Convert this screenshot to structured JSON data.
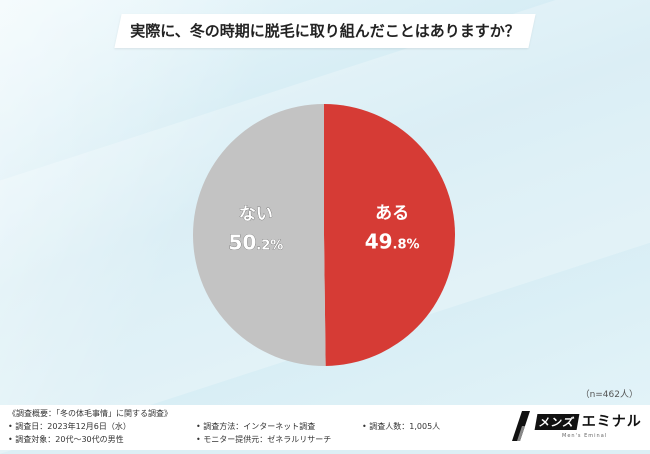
{
  "title": "実際に、冬の時期に脱毛に取り組んだことはありますか？",
  "sample_size": "（n=462人）",
  "chart_data": {
    "type": "pie",
    "title": "実際に、冬の時期に脱毛に取り組んだことはありますか？",
    "slices": [
      {
        "label": "ある",
        "value": 49.8,
        "display_value": "49.8",
        "unit": "%",
        "color": "#d63b35"
      },
      {
        "label": "ない",
        "value": 50.2,
        "display_value": "50.2",
        "unit": "%",
        "color": "#c3c3c3"
      }
    ],
    "start_angle_deg": 0,
    "direction": "clockwise"
  },
  "footer": {
    "overview": "《調査概要：「冬の体毛事情」に関する調査》",
    "date": "• 調査日：2023年12月6日（水）",
    "target": "• 調査対象：20代〜30代の男性",
    "method": "• 調査方法：インターネット調査",
    "monitor": "• モニター提供元：ゼネラルリサーチ",
    "count": "• 調査人数：1,005人"
  },
  "brand": {
    "mens": "メンズ",
    "name": "エミナル",
    "sub": "Men's Eminal"
  }
}
